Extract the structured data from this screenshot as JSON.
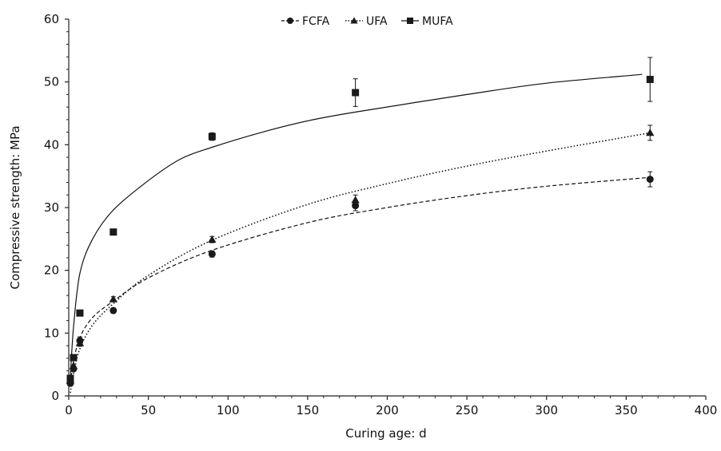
{
  "chart_data": {
    "type": "scatter",
    "title": "",
    "xlabel": "Curing age: d",
    "ylabel": "Compressive strength: MPa",
    "xlim": [
      0,
      400
    ],
    "ylim": [
      0,
      60
    ],
    "x_ticks": [
      0,
      50,
      100,
      150,
      200,
      250,
      300,
      350,
      400
    ],
    "y_ticks": [
      0,
      10,
      20,
      30,
      40,
      50,
      60
    ],
    "grid": false,
    "legend_position": "top-center",
    "series": [
      {
        "name": "FCFA",
        "marker": "circle",
        "line_style": "dashed",
        "x": [
          1,
          3,
          7,
          28,
          90,
          180,
          365
        ],
        "y": [
          2.0,
          4.3,
          8.8,
          13.6,
          22.6,
          30.3,
          34.5
        ],
        "err": [
          0,
          0,
          0.6,
          0.4,
          0.5,
          0.8,
          1.2
        ],
        "fit": {
          "x": [
            1,
            3,
            7,
            15,
            28,
            50,
            90,
            150,
            200,
            250,
            300,
            365
          ],
          "y": [
            2.0,
            5.5,
            9.3,
            12.5,
            15.1,
            18.8,
            23.2,
            27.6,
            30.0,
            31.9,
            33.4,
            34.8
          ]
        }
      },
      {
        "name": "UFA",
        "marker": "triangle",
        "line_style": "dotted",
        "x": [
          1,
          3,
          7,
          28,
          90,
          180,
          365
        ],
        "y": [
          2.5,
          4.8,
          8.4,
          15.4,
          24.9,
          31.2,
          41.9
        ],
        "err": [
          0,
          0,
          0.5,
          0.4,
          0.5,
          0.8,
          1.2
        ],
        "fit": {
          "x": [
            1,
            3,
            7,
            15,
            28,
            50,
            90,
            150,
            200,
            250,
            300,
            365
          ],
          "y": [
            0.5,
            3.5,
            7.5,
            11.3,
            14.7,
            19.2,
            24.8,
            30.5,
            33.8,
            36.6,
            39.0,
            41.9
          ]
        }
      },
      {
        "name": "MUFA",
        "marker": "square",
        "line_style": "solid",
        "x": [
          1,
          3,
          7,
          28,
          90,
          180,
          365
        ],
        "y": [
          2.8,
          6.1,
          13.2,
          26.1,
          41.3,
          48.3,
          50.4
        ],
        "err": [
          0,
          0,
          0,
          0,
          0.6,
          2.2,
          3.5
        ],
        "fit": {
          "x": [
            1,
            3,
            7,
            15,
            28,
            50,
            70,
            90,
            120,
            150,
            180,
            250,
            300,
            360
          ],
          "y": [
            3.0,
            11.0,
            19.5,
            25.0,
            29.6,
            34.3,
            37.7,
            39.6,
            41.9,
            43.8,
            45.2,
            48.0,
            49.8,
            51.2
          ]
        }
      }
    ]
  }
}
